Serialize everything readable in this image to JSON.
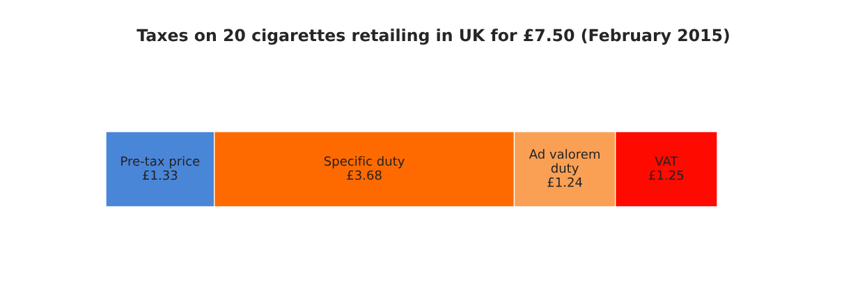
{
  "chart_data": {
    "type": "bar",
    "title": "Taxes on 20 cigarettes retailing in UK for £7.50 (February 2015)",
    "orientation": "horizontal",
    "stacked": true,
    "categories": [
      null
    ],
    "series": [
      {
        "name": "Pre-tax price",
        "color": "#4a86d8",
        "values": [
          1.33
        ],
        "value_labels": [
          "£1.33"
        ]
      },
      {
        "name": "Specific duty",
        "color": "#ff6a00",
        "values": [
          3.68
        ],
        "value_labels": [
          "£3.68"
        ]
      },
      {
        "name": "Ad valorem duty",
        "color": "#f9a055",
        "values": [
          1.24
        ],
        "value_labels": [
          "£1.24"
        ]
      },
      {
        "name": "VAT",
        "color": "#ff0a00",
        "values": [
          1.25
        ],
        "value_labels": [
          "£1.25"
        ]
      }
    ],
    "legend": false
  }
}
